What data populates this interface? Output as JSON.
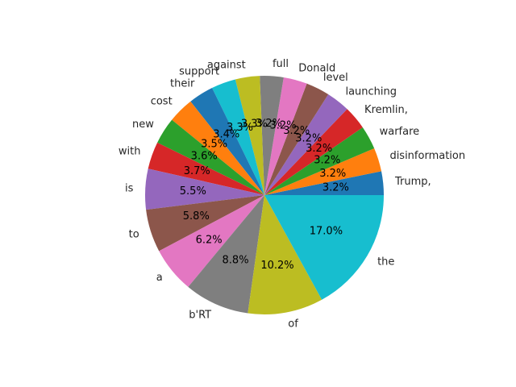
{
  "chart_data": {
    "type": "pie",
    "labels": [
      "Trump,",
      "disinformation",
      "warfare",
      "Kremlin,",
      "launching",
      "level",
      "Donald",
      "full",
      "against",
      "support",
      "their",
      "cost",
      "new",
      "with",
      "is",
      "to",
      "a",
      "b'RT",
      "of",
      "the"
    ],
    "values": [
      3.2,
      3.2,
      3.2,
      3.2,
      3.2,
      3.2,
      3.2,
      3.2,
      3.3,
      3.3,
      3.4,
      3.5,
      3.6,
      3.7,
      5.5,
      5.8,
      6.2,
      8.8,
      10.2,
      17.0
    ],
    "value_labels": [
      "3.2%",
      "3.2%",
      "3.2%",
      "3.2%",
      "3.2%",
      "3.2%",
      "3.2%",
      "3.2%",
      "3.3%",
      "3.3%",
      "3.4%",
      "3.5%",
      "3.6%",
      "3.7%",
      "5.5%",
      "5.8%",
      "6.2%",
      "8.8%",
      "10.2%",
      "17.0%"
    ],
    "colors": [
      "#1f77b4",
      "#ff7f0e",
      "#2ca02c",
      "#d62728",
      "#9467bd",
      "#8c564b",
      "#e377c2",
      "#7f7f7f",
      "#bcbd22",
      "#17becf",
      "#1f77b4",
      "#ff7f0e",
      "#2ca02c",
      "#d62728",
      "#9467bd",
      "#8c564b",
      "#e377c2",
      "#7f7f7f",
      "#bcbd22",
      "#17becf"
    ],
    "start_angle_deg": 0,
    "direction": "counterclockwise"
  }
}
